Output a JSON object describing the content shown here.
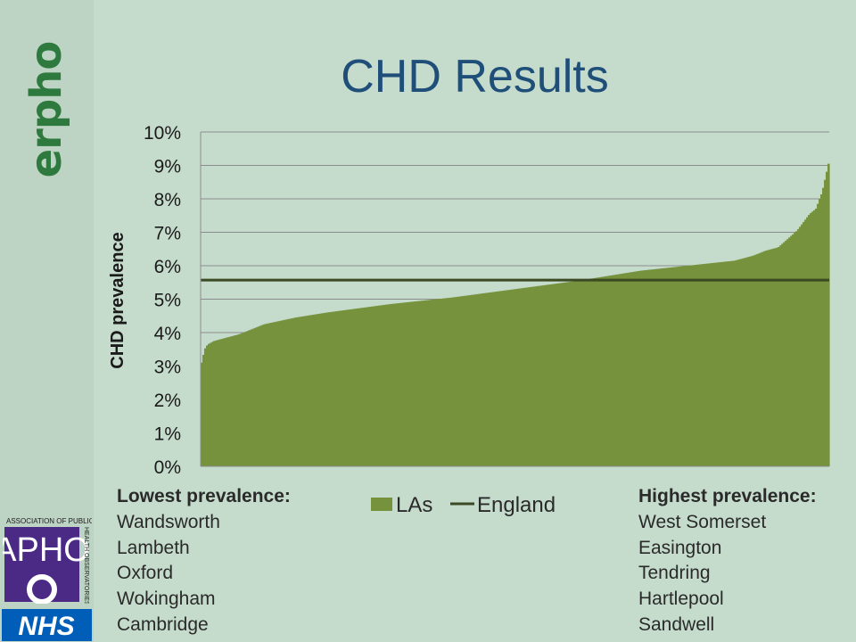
{
  "slide": {
    "title": "CHD Results",
    "brand_text": "erpho"
  },
  "lowest": {
    "heading": "Lowest prevalence:",
    "items": [
      "Wandsworth",
      "Lambeth",
      "Oxford",
      "Wokingham",
      "Cambridge"
    ]
  },
  "highest": {
    "heading": "Highest prevalence:",
    "items": [
      "West Somerset",
      "Easington",
      "Tendring",
      "Hartlepool",
      "Sandwell"
    ]
  },
  "logos": {
    "apho_text": "APHO",
    "apho_side": "ASSOCIATION OF PUBLIC HEALTH OBSERVATORIES",
    "nhs_text": "NHS"
  },
  "colors": {
    "bars": "#76923c",
    "england_line": "#3b4a22",
    "title": "#1f4e79",
    "brand": "#2e7a3e",
    "apho": "#4b2a86",
    "nhs": "#005eb8"
  },
  "chart_data": {
    "type": "bar",
    "ylabel": "CHD prevalence",
    "ylim": [
      0,
      10
    ],
    "ytick_labels": [
      "0%",
      "1%",
      "2%",
      "3%",
      "4%",
      "5%",
      "6%",
      "7%",
      "8%",
      "9%",
      "10%"
    ],
    "grid": true,
    "legend_position": "bottom",
    "x_count": 354,
    "series": [
      {
        "name": "LAs",
        "kind": "bar",
        "description_of_values": "sorted ascending area profile of local-authority prevalence (percent)",
        "profile_rank_fraction": [
          0.0,
          0.003,
          0.006,
          0.01,
          0.02,
          0.04,
          0.06,
          0.08,
          0.1,
          0.15,
          0.2,
          0.3,
          0.4,
          0.5,
          0.6,
          0.7,
          0.8,
          0.85,
          0.88,
          0.9,
          0.92,
          0.95,
          0.97,
          0.98,
          0.99,
          1.0
        ],
        "profile_values": [
          3.1,
          3.35,
          3.55,
          3.65,
          3.75,
          3.85,
          3.95,
          4.1,
          4.25,
          4.45,
          4.6,
          4.85,
          5.05,
          5.3,
          5.55,
          5.85,
          6.05,
          6.15,
          6.3,
          6.45,
          6.55,
          7.05,
          7.55,
          7.7,
          8.2,
          9.05
        ]
      },
      {
        "name": "England",
        "kind": "line",
        "value": 5.57
      }
    ]
  }
}
